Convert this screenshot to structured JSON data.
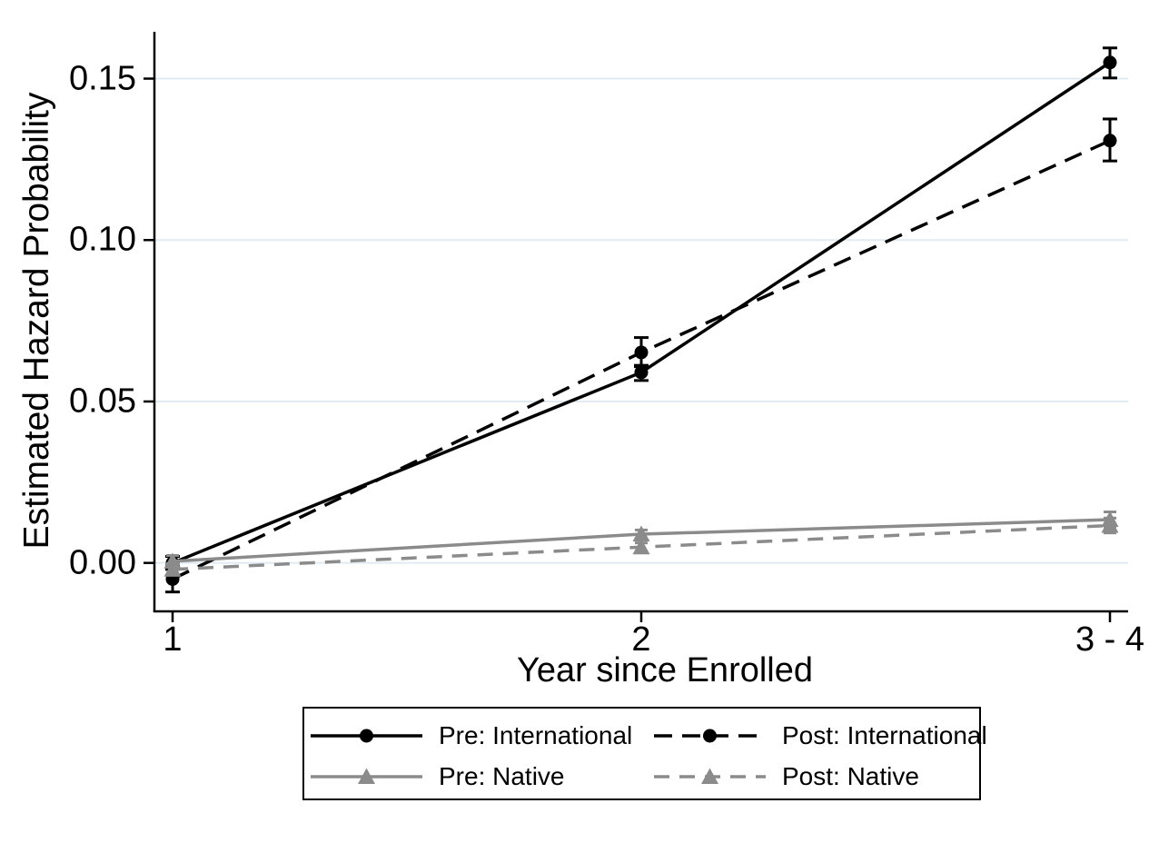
{
  "figure": {
    "background": "#ffffff",
    "text_color": "#000000"
  },
  "chart_data": {
    "type": "line",
    "title": "",
    "xlabel": "Year since Enrolled",
    "ylabel": "Estimated Hazard Probability",
    "x_categories": [
      "1",
      "2",
      "3 - 4"
    ],
    "yticks": [
      {
        "value": 0.0,
        "label": "0.00"
      },
      {
        "value": 0.05,
        "label": "0.05"
      },
      {
        "value": 0.1,
        "label": "0.10"
      },
      {
        "value": 0.15,
        "label": "0.15"
      }
    ],
    "ylim": [
      -0.015,
      0.1645
    ],
    "grid": "horizontal",
    "gridline_color": "#e2ebf2",
    "axis_color": "#000000",
    "error_bars": true,
    "series": [
      {
        "name": "Pre: International",
        "color": "#000000",
        "line_style": "solid",
        "marker": "circle",
        "values": [
          0.0,
          0.059,
          0.155
        ],
        "ci_low": [
          -0.002,
          0.0565,
          0.1502
        ],
        "ci_high": [
          0.002,
          0.0612,
          0.1595
        ]
      },
      {
        "name": "Post: International",
        "color": "#000000",
        "line_style": "dashed",
        "marker": "circle",
        "values": [
          -0.005,
          0.0652,
          0.1308
        ],
        "ci_low": [
          -0.009,
          0.0608,
          0.1245
        ],
        "ci_high": [
          -0.001,
          0.0698,
          0.1375
        ]
      },
      {
        "name": "Pre: Native",
        "color": "#8b8b8b",
        "line_style": "solid",
        "marker": "triangle",
        "values": [
          0.0005,
          0.0089,
          0.0134
        ],
        "ci_low": [
          -0.0013,
          0.0076,
          0.0112
        ],
        "ci_high": [
          0.0023,
          0.0102,
          0.0158
        ]
      },
      {
        "name": "Post: Native",
        "color": "#8b8b8b",
        "line_style": "dashed",
        "marker": "triangle",
        "values": [
          -0.002,
          0.0049,
          0.0116
        ],
        "ci_low": [
          -0.0038,
          0.0036,
          0.0093
        ],
        "ci_high": [
          -0.0002,
          0.0062,
          0.0139
        ]
      }
    ],
    "legend": {
      "position": "bottom",
      "rows": 2,
      "columns": 2,
      "border_color": "#000000",
      "background": "#ffffff"
    }
  }
}
